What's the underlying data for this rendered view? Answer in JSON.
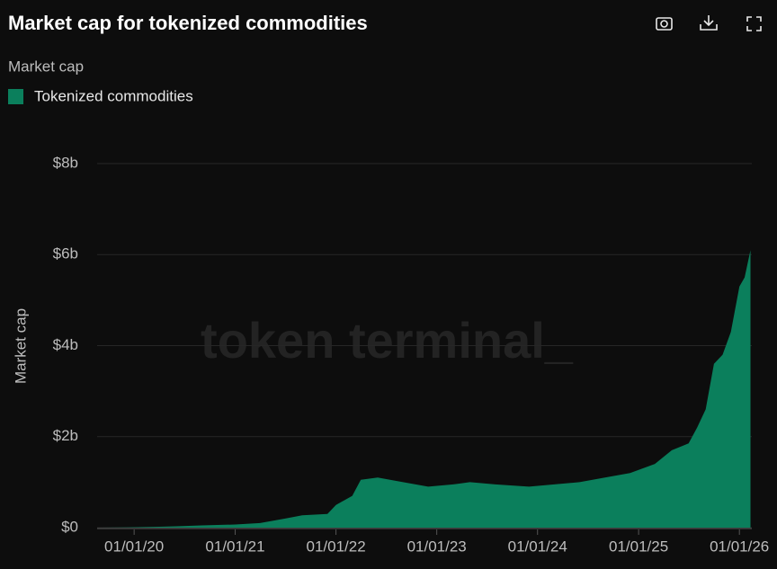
{
  "chart_data": {
    "type": "area",
    "title": "Market cap for tokenized commodities",
    "legend_title": "Market cap",
    "ylabel": "Market cap",
    "watermark": "token terminal_",
    "x": [
      "2019-09-01",
      "2019-12-01",
      "2020-04-01",
      "2020-06-01",
      "2020-09-01",
      "2021-01-01",
      "2021-04-01",
      "2021-07-01",
      "2021-09-01",
      "2021-12-01",
      "2022-01-01",
      "2022-03-01",
      "2022-04-01",
      "2022-06-01",
      "2022-09-01",
      "2022-12-01",
      "2023-03-01",
      "2023-05-01",
      "2023-08-01",
      "2023-12-01",
      "2024-03-01",
      "2024-06-01",
      "2024-09-01",
      "2024-12-01",
      "2025-03-01",
      "2025-05-01",
      "2025-07-01",
      "2025-08-01",
      "2025-09-01",
      "2025-10-01",
      "2025-11-01",
      "2025-12-01",
      "2026-01-01",
      "2026-01-20",
      "2026-02-10"
    ],
    "series": [
      {
        "name": "Tokenized commodities",
        "color": "#0b7f5c",
        "values": [
          0,
          5000000,
          20000000,
          30000000,
          50000000,
          70000000,
          100000000,
          200000000,
          270000000,
          300000000,
          500000000,
          700000000,
          1050000000,
          1100000000,
          1000000000,
          900000000,
          950000000,
          1000000000,
          950000000,
          900000000,
          950000000,
          1000000000,
          1100000000,
          1200000000,
          1400000000,
          1700000000,
          1850000000,
          2200000000,
          2600000000,
          3600000000,
          3800000000,
          4300000000,
          5300000000,
          5500000000,
          6100000000
        ]
      }
    ],
    "xlim": [
      "2019-08-20",
      "2026-02-15"
    ],
    "xticks": [
      {
        "value": "2020-01-01",
        "label": "01/01/20"
      },
      {
        "value": "2021-01-01",
        "label": "01/01/21"
      },
      {
        "value": "2022-01-01",
        "label": "01/01/22"
      },
      {
        "value": "2023-01-01",
        "label": "01/01/23"
      },
      {
        "value": "2024-01-01",
        "label": "01/01/24"
      },
      {
        "value": "2025-01-01",
        "label": "01/01/25"
      },
      {
        "value": "2026-01-01",
        "label": "01/01/26"
      }
    ],
    "ylim": [
      0,
      8000000000
    ],
    "yticks": [
      {
        "value": 0,
        "label": "$0"
      },
      {
        "value": 2000000000,
        "label": "$2b"
      },
      {
        "value": 4000000000,
        "label": "$4b"
      },
      {
        "value": 6000000000,
        "label": "$6b"
      },
      {
        "value": 8000000000,
        "label": "$8b"
      }
    ],
    "grid": true
  }
}
